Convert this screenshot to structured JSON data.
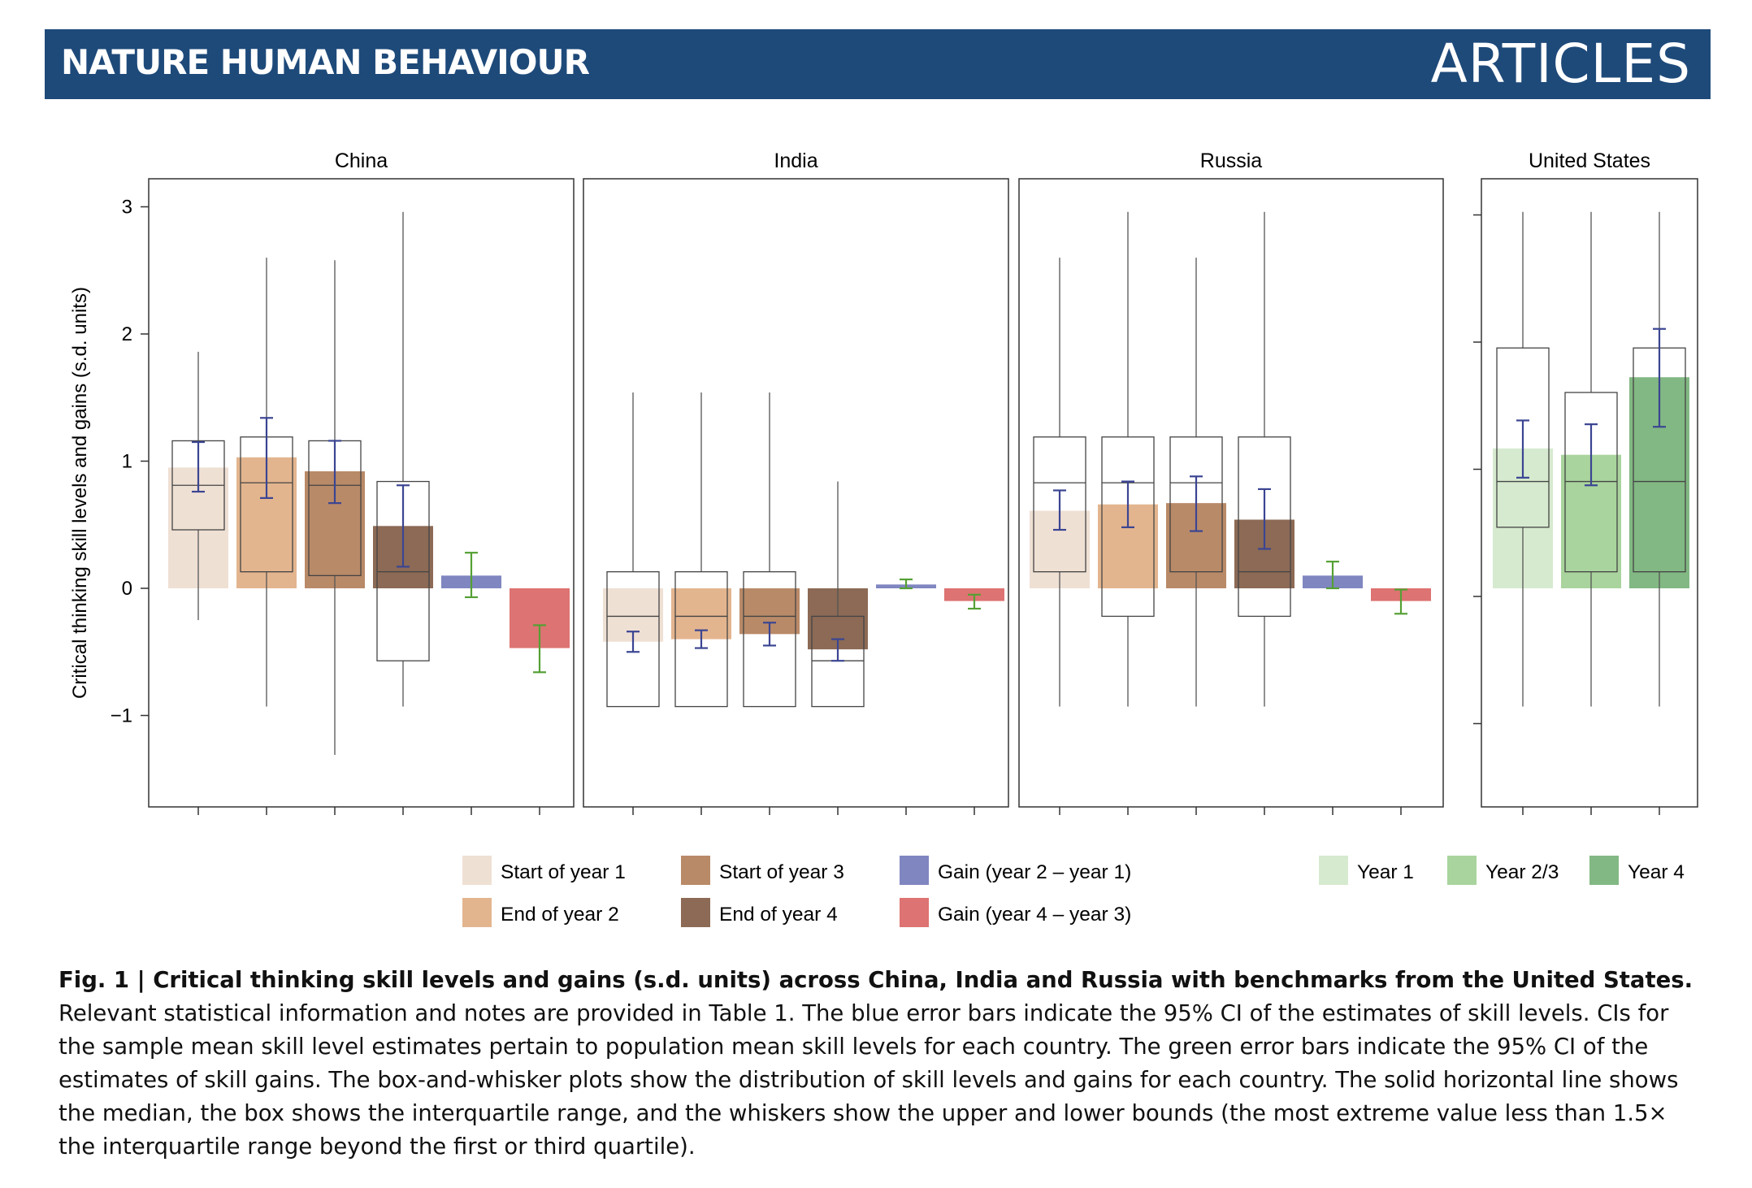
{
  "header": {
    "journal": "NATURE HUMAN BEHAVIOUR",
    "section": "ARTICLES"
  },
  "caption": {
    "lead": "Fig. 1 | Critical thinking skill levels and gains (s.d. units) across China, India and Russia with benchmarks from the United States.",
    "body": " Relevant statistical information and notes are provided in Table 1. The blue error bars indicate the 95% CI of the estimates of skill levels. CIs for the sample mean skill level estimates pertain to population mean skill levels for each country. The green error bars indicate the 95% CI of the estimates of skill gains. The box-and-whisker plots show the distribution of skill levels and gains for each country. The solid horizontal line shows the median, the box shows the interquartile range, and the whiskers show the upper and lower bounds (the most extreme value less than 1.5× the interquartile range beyond the first or third quartile)."
  },
  "chart_data": {
    "type": "bar",
    "ylabel": "Critical thinking skill levels and gains (s.d. units)",
    "ylim": [
      -1.7,
      3.2
    ],
    "yticks": [
      3,
      2,
      1,
      0,
      -1
    ],
    "ytick_labels": [
      "3",
      "2",
      "1",
      "0",
      "−1"
    ],
    "colors": {
      "start_year1": "#efe0d4",
      "end_year2": "#e3b58f",
      "start_year3": "#b98a68",
      "end_year4": "#8c6a55",
      "gain_2_1": "#7f86c0",
      "gain_4_3": "#dd7372",
      "us_year1": "#d6eacf",
      "us_year23": "#a9d49d",
      "us_year4": "#82b883",
      "level_ci": "#3b4592",
      "gain_ci": "#55a034"
    },
    "legend": {
      "main": [
        {
          "label": "Start of year 1",
          "color": "#efe0d4"
        },
        {
          "label": "End of year 2",
          "color": "#e3b58f"
        },
        {
          "label": "Start of year 3",
          "color": "#b98a68"
        },
        {
          "label": "End of year 4",
          "color": "#8c6a55"
        },
        {
          "label": "Gain (year 2 – year 1)",
          "color": "#7f86c0"
        },
        {
          "label": "Gain (year 4 – year 3)",
          "color": "#dd7372"
        }
      ],
      "us": [
        {
          "label": "Year 1",
          "color": "#d6eacf"
        },
        {
          "label": "Year 2/3",
          "color": "#a9d49d"
        },
        {
          "label": "Year 4",
          "color": "#82b883"
        }
      ]
    },
    "panels": [
      {
        "name": "China",
        "bars": [
          {
            "color": "start_year1",
            "value": 0.95,
            "ci": [
              0.76,
              1.15
            ],
            "ci_color": "level_ci",
            "box": {
              "q1": 0.46,
              "median": 0.81,
              "q3": 1.16,
              "whisker": [
                -0.25,
                1.86
              ]
            }
          },
          {
            "color": "end_year2",
            "value": 1.03,
            "ci": [
              0.71,
              1.34
            ],
            "ci_color": "level_ci",
            "box": {
              "q1": 0.13,
              "median": 0.83,
              "q3": 1.19,
              "whisker": [
                -0.93,
                2.6
              ]
            }
          },
          {
            "color": "start_year3",
            "value": 0.92,
            "ci": [
              0.67,
              1.16
            ],
            "ci_color": "level_ci",
            "box": {
              "q1": 0.1,
              "median": 0.81,
              "q3": 1.16,
              "whisker": [
                -1.31,
                2.58
              ]
            }
          },
          {
            "color": "end_year4",
            "value": 0.49,
            "ci": [
              0.17,
              0.81
            ],
            "ci_color": "level_ci",
            "box": {
              "q1": -0.57,
              "median": 0.13,
              "q3": 0.84,
              "whisker": [
                -0.93,
                2.96
              ]
            }
          },
          {
            "color": "gain_2_1",
            "value": 0.1,
            "ci": [
              -0.07,
              0.28
            ],
            "ci_color": "gain_ci"
          },
          {
            "color": "gain_4_3",
            "value": -0.47,
            "ci": [
              -0.66,
              -0.29
            ],
            "ci_color": "gain_ci"
          }
        ]
      },
      {
        "name": "India",
        "bars": [
          {
            "color": "start_year1",
            "value": -0.42,
            "ci": [
              -0.5,
              -0.34
            ],
            "ci_color": "level_ci",
            "box": {
              "q1": -0.93,
              "median": -0.22,
              "q3": 0.13,
              "whisker": [
                -0.93,
                1.54
              ]
            }
          },
          {
            "color": "end_year2",
            "value": -0.4,
            "ci": [
              -0.47,
              -0.33
            ],
            "ci_color": "level_ci",
            "box": {
              "q1": -0.93,
              "median": -0.22,
              "q3": 0.13,
              "whisker": [
                -0.93,
                1.54
              ]
            }
          },
          {
            "color": "start_year3",
            "value": -0.36,
            "ci": [
              -0.45,
              -0.27
            ],
            "ci_color": "level_ci",
            "box": {
              "q1": -0.93,
              "median": -0.22,
              "q3": 0.13,
              "whisker": [
                -0.93,
                1.54
              ]
            }
          },
          {
            "color": "end_year4",
            "value": -0.48,
            "ci": [
              -0.57,
              -0.4
            ],
            "ci_color": "level_ci",
            "box": {
              "q1": -0.93,
              "median": -0.57,
              "q3": -0.22,
              "whisker": [
                -0.93,
                0.84
              ]
            }
          },
          {
            "color": "gain_2_1",
            "value": 0.03,
            "ci": [
              0.0,
              0.07
            ],
            "ci_color": "gain_ci"
          },
          {
            "color": "gain_4_3",
            "value": -0.1,
            "ci": [
              -0.16,
              -0.05
            ],
            "ci_color": "gain_ci"
          }
        ]
      },
      {
        "name": "Russia",
        "bars": [
          {
            "color": "start_year1",
            "value": 0.61,
            "ci": [
              0.46,
              0.77
            ],
            "ci_color": "level_ci",
            "box": {
              "q1": 0.13,
              "median": 0.83,
              "q3": 1.19,
              "whisker": [
                -0.93,
                2.6
              ]
            }
          },
          {
            "color": "end_year2",
            "value": 0.66,
            "ci": [
              0.48,
              0.84
            ],
            "ci_color": "level_ci",
            "box": {
              "q1": -0.22,
              "median": 0.83,
              "q3": 1.19,
              "whisker": [
                -0.93,
                2.96
              ]
            }
          },
          {
            "color": "start_year3",
            "value": 0.67,
            "ci": [
              0.45,
              0.88
            ],
            "ci_color": "level_ci",
            "box": {
              "q1": 0.13,
              "median": 0.83,
              "q3": 1.19,
              "whisker": [
                -0.93,
                2.6
              ]
            }
          },
          {
            "color": "end_year4",
            "value": 0.54,
            "ci": [
              0.31,
              0.78
            ],
            "ci_color": "level_ci",
            "box": {
              "q1": -0.22,
              "median": 0.13,
              "q3": 1.19,
              "whisker": [
                -0.93,
                2.96
              ]
            }
          },
          {
            "color": "gain_2_1",
            "value": 0.1,
            "ci": [
              0.0,
              0.21
            ],
            "ci_color": "gain_ci"
          },
          {
            "color": "gain_4_3",
            "value": -0.1,
            "ci": [
              -0.2,
              -0.01
            ],
            "ci_color": "gain_ci"
          }
        ]
      },
      {
        "name": "United States",
        "bars": [
          {
            "color": "us_year1",
            "value": 1.1,
            "ci": [
              0.87,
              1.32
            ],
            "ci_color": "level_ci",
            "box": {
              "q1": 0.48,
              "median": 0.84,
              "q3": 1.89,
              "whisker": [
                -0.93,
                2.96
              ]
            }
          },
          {
            "color": "us_year23",
            "value": 1.05,
            "ci": [
              0.81,
              1.29
            ],
            "ci_color": "level_ci",
            "box": {
              "q1": 0.13,
              "median": 0.84,
              "q3": 1.54,
              "whisker": [
                -0.93,
                2.96
              ]
            }
          },
          {
            "color": "us_year4",
            "value": 1.66,
            "ci": [
              1.27,
              2.04
            ],
            "ci_color": "level_ci",
            "box": {
              "q1": 0.13,
              "median": 0.84,
              "q3": 1.89,
              "whisker": [
                -0.93,
                2.96
              ]
            }
          }
        ]
      }
    ]
  }
}
